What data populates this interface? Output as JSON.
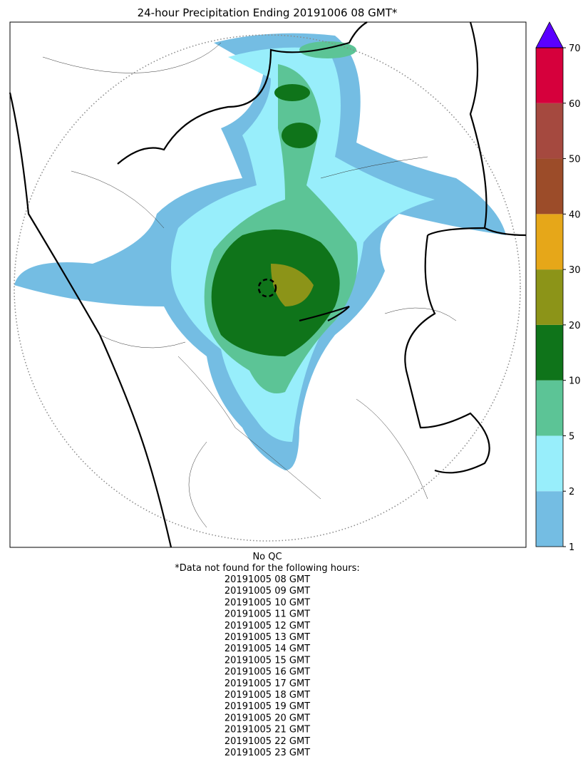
{
  "title": "24-hour Precipitation Ending 20191006 08 GMT*",
  "colorbar": {
    "ticks": [
      1,
      2,
      5,
      10,
      20,
      30,
      40,
      50,
      60,
      70
    ],
    "colors": [
      "#74bde3",
      "#98eefb",
      "#5cc496",
      "#0f741a",
      "#8c9418",
      "#e6a719",
      "#9c4c29",
      "#a5493f",
      "#d6003c"
    ],
    "extend_color": "#5a00ff"
  },
  "notes": {
    "qc": "No QC",
    "missing_header": "*Data not found for the following hours:",
    "missing_hours": [
      "20191005 08 GMT",
      "20191005 09 GMT",
      "20191005 10 GMT",
      "20191005 11 GMT",
      "20191005 12 GMT",
      "20191005 13 GMT",
      "20191005 14 GMT",
      "20191005 15 GMT",
      "20191005 16 GMT",
      "20191005 17 GMT",
      "20191005 18 GMT",
      "20191005 19 GMT",
      "20191005 20 GMT",
      "20191005 21 GMT",
      "20191005 22 GMT",
      "20191005 23 GMT"
    ]
  }
}
